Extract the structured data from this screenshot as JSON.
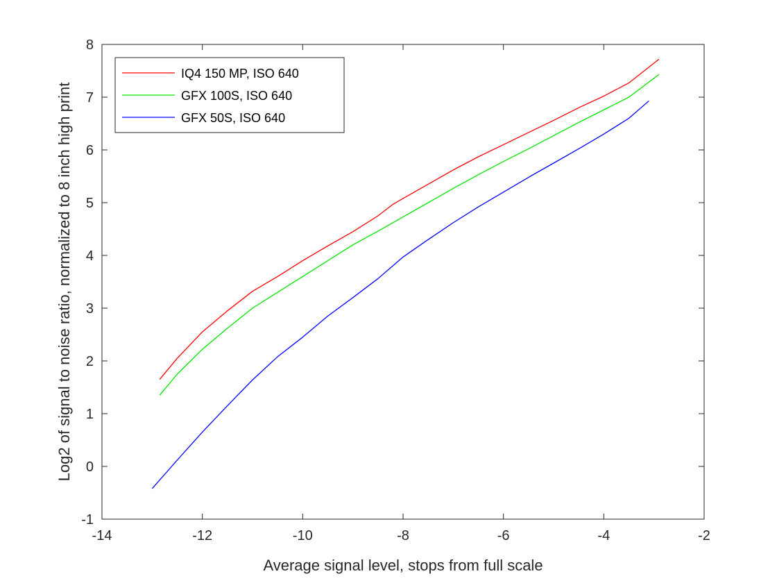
{
  "chart_data": {
    "type": "line",
    "title": "",
    "xlabel": "Average signal level, stops from full scale",
    "ylabel": "Log2 of signal to noise ratio, normalized to 8 inch high print",
    "xlim": [
      -14,
      -2
    ],
    "ylim": [
      -1,
      8
    ],
    "xticks": [
      -14,
      -12,
      -10,
      -8,
      -6,
      -4,
      -2
    ],
    "yticks": [
      -1,
      0,
      1,
      2,
      3,
      4,
      5,
      6,
      7,
      8
    ],
    "xtick_labels": [
      "-14",
      "-12",
      "-10",
      "-8",
      "-6",
      "-4",
      "-2"
    ],
    "ytick_labels": [
      "-1",
      "0",
      "1",
      "2",
      "3",
      "4",
      "5",
      "6",
      "7",
      "8"
    ],
    "grid": false,
    "legend_position": "top-left",
    "series": [
      {
        "name": "IQ4 150 MP, ISO 640",
        "color": "#ff0000",
        "x": [
          -12.85,
          -12.5,
          -12,
          -11.5,
          -11,
          -10.5,
          -10,
          -9.5,
          -9,
          -8.5,
          -8.2,
          -8,
          -7.5,
          -7,
          -6.5,
          -6,
          -5.5,
          -5,
          -4.5,
          -4,
          -3.5,
          -2.9
        ],
        "y": [
          1.65,
          2.05,
          2.55,
          2.95,
          3.32,
          3.6,
          3.9,
          4.18,
          4.45,
          4.75,
          4.97,
          5.08,
          5.35,
          5.62,
          5.87,
          6.1,
          6.33,
          6.56,
          6.8,
          7.02,
          7.27,
          7.72
        ]
      },
      {
        "name": "GFX 100S, ISO 640",
        "color": "#00e600",
        "x": [
          -12.85,
          -12.5,
          -12,
          -11.5,
          -11,
          -10.5,
          -10,
          -9.5,
          -9,
          -8.5,
          -8,
          -7.5,
          -7,
          -6.5,
          -6,
          -5.5,
          -5,
          -4.5,
          -4,
          -3.5,
          -2.9
        ],
        "y": [
          1.35,
          1.75,
          2.22,
          2.62,
          3.0,
          3.3,
          3.6,
          3.9,
          4.2,
          4.46,
          4.73,
          5.0,
          5.27,
          5.53,
          5.78,
          6.02,
          6.27,
          6.52,
          6.76,
          7.0,
          7.43
        ]
      },
      {
        "name": "GFX 50S, ISO 640",
        "color": "#0000ff",
        "x": [
          -13.0,
          -12.5,
          -12,
          -11.5,
          -11,
          -10.5,
          -10,
          -9.5,
          -9,
          -8.5,
          -8,
          -7.5,
          -7,
          -6.5,
          -6,
          -5.5,
          -5,
          -4.5,
          -4,
          -3.5,
          -3.1
        ],
        "y": [
          -0.42,
          0.12,
          0.65,
          1.15,
          1.64,
          2.08,
          2.45,
          2.85,
          3.2,
          3.56,
          3.97,
          4.3,
          4.62,
          4.92,
          5.2,
          5.48,
          5.75,
          6.02,
          6.3,
          6.6,
          6.93
        ]
      }
    ]
  }
}
